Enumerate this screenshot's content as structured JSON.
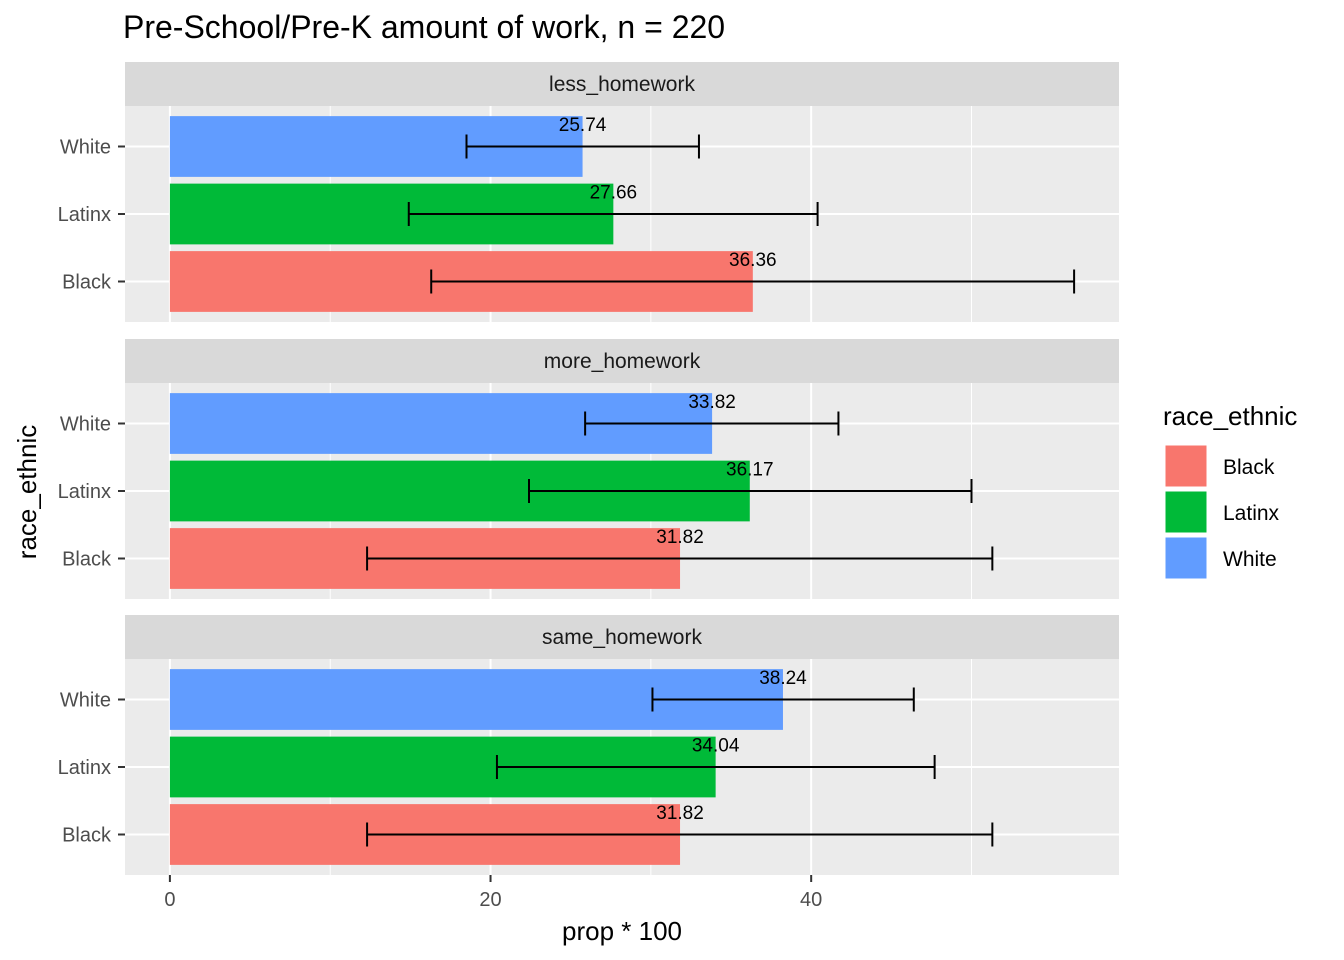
{
  "chart_data": {
    "type": "bar",
    "orientation": "horizontal",
    "title": "Pre-School/Pre-K amount of work, n = 220",
    "xlabel": "prop * 100",
    "ylabel": "race_ethnic",
    "xlim": [
      -2.8,
      59.2
    ],
    "x_ticks": [
      0,
      20,
      40
    ],
    "grid": true,
    "categories": [
      "Black",
      "Latinx",
      "White"
    ],
    "legend": {
      "title": "race_ethnic",
      "position": "right",
      "entries": [
        {
          "name": "Black",
          "color": "#F8766D"
        },
        {
          "name": "Latinx",
          "color": "#00BA38"
        },
        {
          "name": "White",
          "color": "#619CFF"
        }
      ]
    },
    "panels": [
      {
        "name": "less_homework",
        "bars": [
          {
            "category": "Black",
            "value": 36.36,
            "label": "36.36",
            "ci": [
              16.3,
              56.4
            ]
          },
          {
            "category": "Latinx",
            "value": 27.66,
            "label": "27.66",
            "ci": [
              14.9,
              40.4
            ]
          },
          {
            "category": "White",
            "value": 25.74,
            "label": "25.74",
            "ci": [
              18.5,
              33.0
            ]
          }
        ]
      },
      {
        "name": "more_homework",
        "bars": [
          {
            "category": "Black",
            "value": 31.82,
            "label": "31.82",
            "ci": [
              12.3,
              51.3
            ]
          },
          {
            "category": "Latinx",
            "value": 36.17,
            "label": "36.17",
            "ci": [
              22.4,
              50.0
            ]
          },
          {
            "category": "White",
            "value": 33.82,
            "label": "33.82",
            "ci": [
              25.9,
              41.7
            ]
          }
        ]
      },
      {
        "name": "same_homework",
        "bars": [
          {
            "category": "Black",
            "value": 31.82,
            "label": "31.82",
            "ci": [
              12.3,
              51.3
            ]
          },
          {
            "category": "Latinx",
            "value": 34.04,
            "label": "34.04",
            "ci": [
              20.4,
              47.7
            ]
          },
          {
            "category": "White",
            "value": 38.24,
            "label": "38.24",
            "ci": [
              30.1,
              46.4
            ]
          }
        ]
      }
    ]
  }
}
